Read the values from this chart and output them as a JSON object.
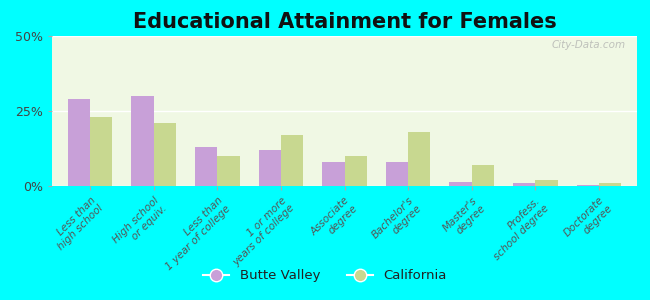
{
  "title": "Educational Attainment for Females",
  "categories": [
    "Less than\nhigh school",
    "High school\nor equiv.",
    "Less than\n1 year of college",
    "1 or more\nyears of college",
    "Associate\ndegree",
    "Bachelor's\ndegree",
    "Master's\ndegree",
    "Profess.\nschool degree",
    "Doctorate\ndegree"
  ],
  "butte_valley": [
    29,
    30,
    13,
    12,
    8,
    8,
    1.5,
    1,
    0.5
  ],
  "california": [
    23,
    21,
    10,
    17,
    10,
    18,
    7,
    2,
    1
  ],
  "butte_color": "#c8a0d8",
  "california_color": "#c8d890",
  "bg_color": "#00ffff",
  "plot_bg": "#f0f8e4",
  "ylim": [
    0,
    50
  ],
  "yticks": [
    0,
    25,
    50
  ],
  "ytick_labels": [
    "0%",
    "25%",
    "50%"
  ],
  "legend_labels": [
    "Butte Valley",
    "California"
  ],
  "watermark": "City-Data.com",
  "title_fontsize": 15,
  "label_fontsize": 7.5
}
